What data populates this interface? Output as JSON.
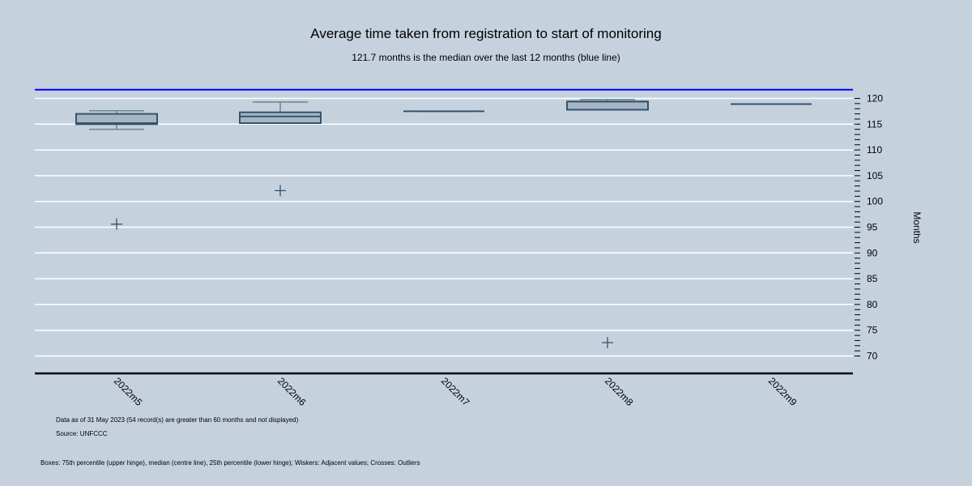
{
  "chart_data": {
    "type": "box",
    "title": "Average time taken from registration to start of monitoring",
    "subtitle": "121.7 months is the median over the last 12 months (blue line)",
    "ylabel": "Months",
    "xlabel": "",
    "ylim": [
      67,
      122
    ],
    "yticks": [
      70,
      75,
      80,
      85,
      90,
      95,
      100,
      105,
      110,
      115,
      120
    ],
    "y_axis_side": "right",
    "grid": true,
    "reference_line": {
      "value": 121.7,
      "color": "#0000ff"
    },
    "categories": [
      "2022m5",
      "2022m6",
      "2022m7",
      "2022m8",
      "2022m9"
    ],
    "boxes": [
      {
        "lower_whisker": 114.0,
        "q1": 115.0,
        "median": 115.2,
        "q3": 117.0,
        "upper_whisker": 117.6,
        "outliers": [
          95.6
        ]
      },
      {
        "lower_whisker": 115.2,
        "q1": 115.2,
        "median": 116.5,
        "q3": 117.3,
        "upper_whisker": 119.3,
        "outliers": [
          102.1
        ]
      },
      {
        "lower_whisker": 117.5,
        "q1": 117.5,
        "median": 117.5,
        "q3": 117.5,
        "upper_whisker": 117.5,
        "outliers": []
      },
      {
        "lower_whisker": 117.8,
        "q1": 117.8,
        "median": 119.4,
        "q3": 119.4,
        "upper_whisker": 119.8,
        "outliers": [
          72.6
        ]
      },
      {
        "lower_whisker": 118.9,
        "q1": 118.9,
        "median": 118.9,
        "q3": 118.9,
        "upper_whisker": 118.9,
        "outliers": []
      }
    ],
    "colors": {
      "box_fill": "#a7b6c4",
      "box_stroke": "#34536d",
      "whisker": "#6a8591",
      "grid": "#ffffff",
      "axis": "#000000"
    }
  },
  "notes": {
    "data_note": "Data as of 31 May 2023 (54 record(s) are greater than 60 months and not displayed)",
    "source": "Source: UNFCCC",
    "legend": "Boxes: 75th percentile (upper hinge), median (centre line), 25th percentile (lower hinge); Wiskers: Adjacent values; Crosses: Outliers"
  }
}
